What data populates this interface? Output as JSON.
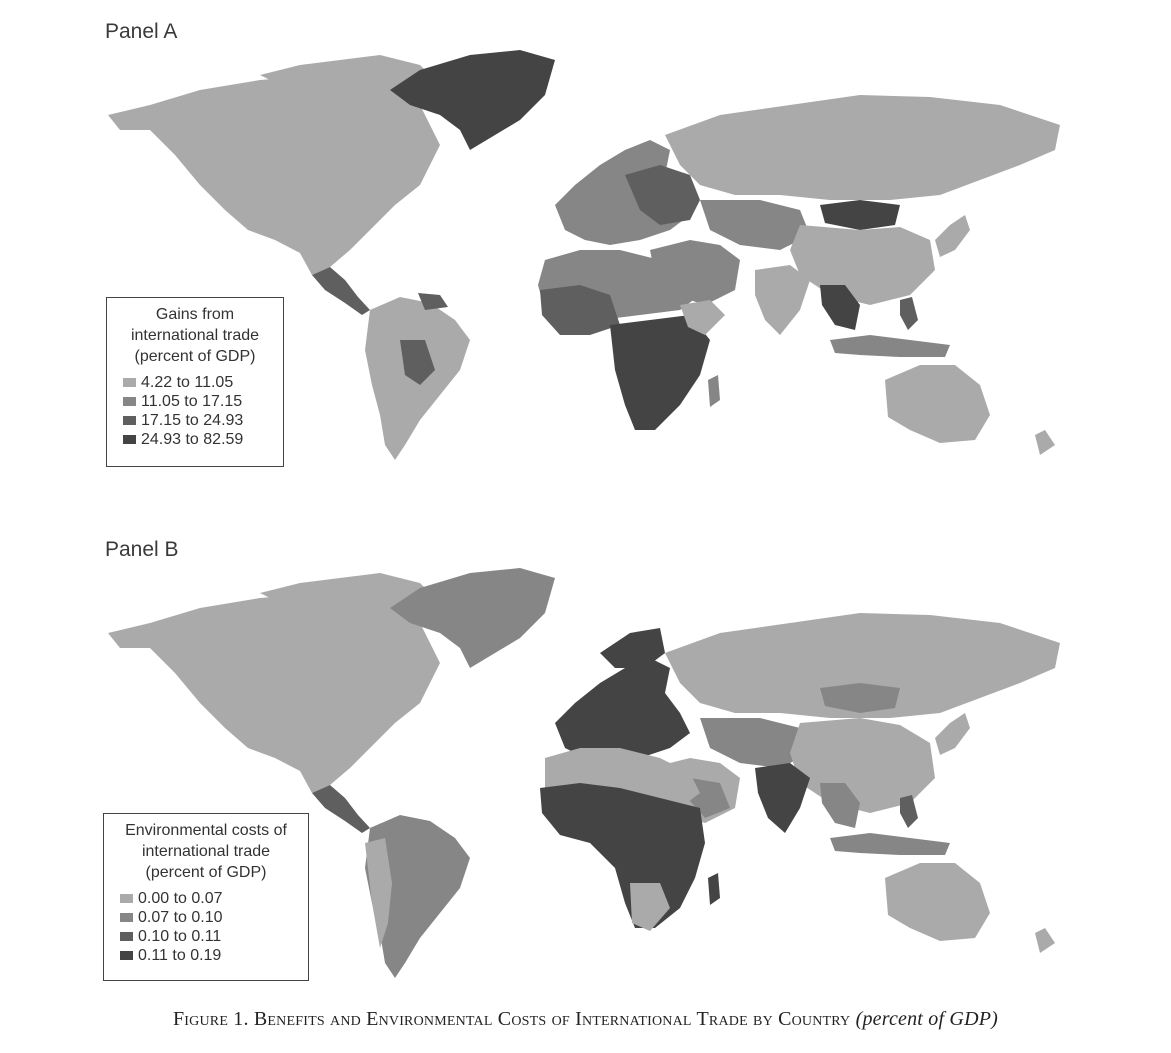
{
  "panel_a": {
    "label": "Panel A",
    "legend": {
      "title": [
        "Gains from",
        "international trade",
        "(percent of GDP)"
      ],
      "classes": [
        {
          "range": "4.22 to 11.05",
          "color": "#aaaaaa"
        },
        {
          "range": "11.05 to 17.15",
          "color": "#868686"
        },
        {
          "range": "17.15 to 24.93",
          "color": "#5f5f5f"
        },
        {
          "range": "24.93 to 82.59",
          "color": "#444444"
        }
      ]
    }
  },
  "panel_b": {
    "label": "Panel B",
    "legend": {
      "title": [
        "Environmental costs of",
        "international trade",
        "(percent of GDP)"
      ],
      "classes": [
        {
          "range": "0.00 to 0.07",
          "color": "#aaaaaa"
        },
        {
          "range": "0.07 to 0.10",
          "color": "#868686"
        },
        {
          "range": "0.10 to 0.11",
          "color": "#5f5f5f"
        },
        {
          "range": "0.11 to 0.19",
          "color": "#444444"
        }
      ]
    }
  },
  "caption": {
    "main": "Figure 1. Benefits and Environmental Costs of International Trade by Country",
    "suffix": "(percent of GDP)"
  }
}
